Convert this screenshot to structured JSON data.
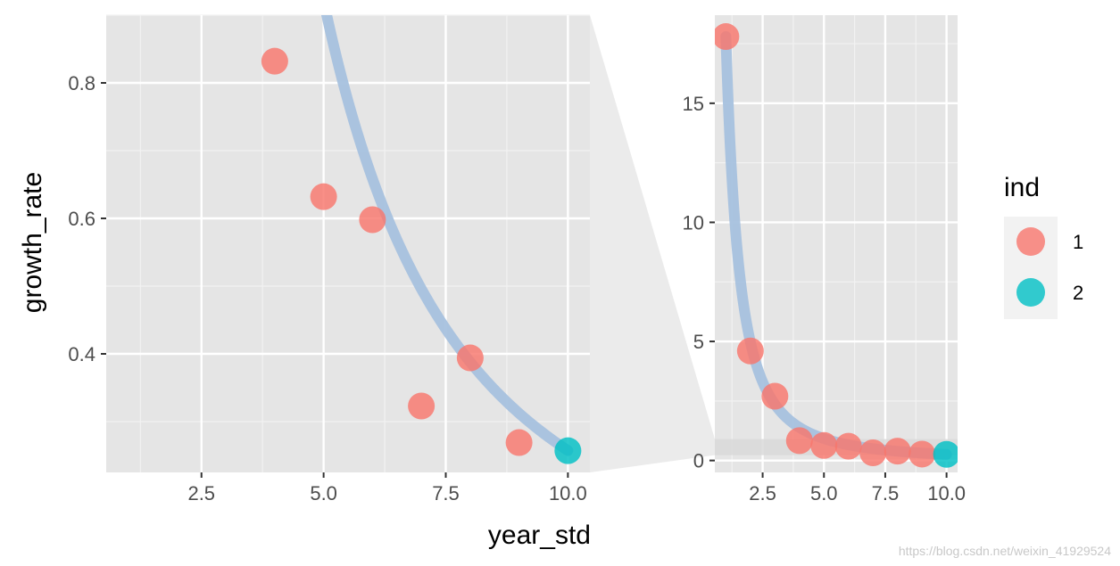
{
  "chart_data": [
    {
      "type": "scatter",
      "panel": "zoomed",
      "xlabel": "year_std",
      "ylabel": "growth_rate",
      "xlim": [
        0.55,
        10.45
      ],
      "ylim": [
        0.225,
        0.9
      ],
      "x_ticks": [
        2.5,
        5.0,
        7.5,
        10.0
      ],
      "x_tick_labels": [
        "2.5",
        "5.0",
        "7.5",
        "10.0"
      ],
      "y_ticks": [
        0.4,
        0.6,
        0.8
      ],
      "y_tick_labels": [
        "0.4",
        "0.6",
        "0.8"
      ],
      "grid": true,
      "series": [
        {
          "name": "1",
          "color": "#F8766D",
          "x": [
            4,
            5,
            6,
            7,
            8,
            9
          ],
          "y": [
            0.832,
            0.632,
            0.598,
            0.323,
            0.394,
            0.269
          ]
        },
        {
          "name": "2",
          "color": "#00BFC4",
          "x": [
            10
          ],
          "y": [
            0.257
          ]
        }
      ],
      "fit_curve": {
        "color": "#A6C1DE",
        "formula": "17.8 * x^-1.84"
      }
    },
    {
      "type": "scatter",
      "panel": "full",
      "xlim": [
        0.55,
        10.45
      ],
      "ylim": [
        -0.5,
        18.7
      ],
      "x_ticks": [
        2.5,
        5.0,
        7.5,
        10.0
      ],
      "x_tick_labels": [
        "2.5",
        "5.0",
        "7.5",
        "10.0"
      ],
      "y_ticks": [
        0,
        5,
        10,
        15
      ],
      "y_tick_labels": [
        "0",
        "5",
        "10",
        "15"
      ],
      "grid": true,
      "series": [
        {
          "name": "1",
          "color": "#F8766D",
          "x": [
            1,
            2,
            3,
            4,
            5,
            6,
            7,
            8,
            9
          ],
          "y": [
            17.8,
            4.6,
            2.7,
            0.832,
            0.632,
            0.598,
            0.323,
            0.394,
            0.269
          ]
        },
        {
          "name": "2",
          "color": "#00BFC4",
          "x": [
            10
          ],
          "y": [
            0.257
          ]
        }
      ],
      "fit_curve": {
        "color": "#A6C1DE",
        "formula": "17.8 * x^-1.84"
      },
      "zoom_band": {
        "y_from": 0.225,
        "y_to": 0.9
      }
    }
  ],
  "legend": {
    "title": "ind",
    "placement": "right",
    "items": [
      {
        "label": "1",
        "color": "#F8766D"
      },
      {
        "label": "2",
        "color": "#00BFC4"
      }
    ]
  },
  "watermark": "https://blog.csdn.net/weixin_41929524"
}
